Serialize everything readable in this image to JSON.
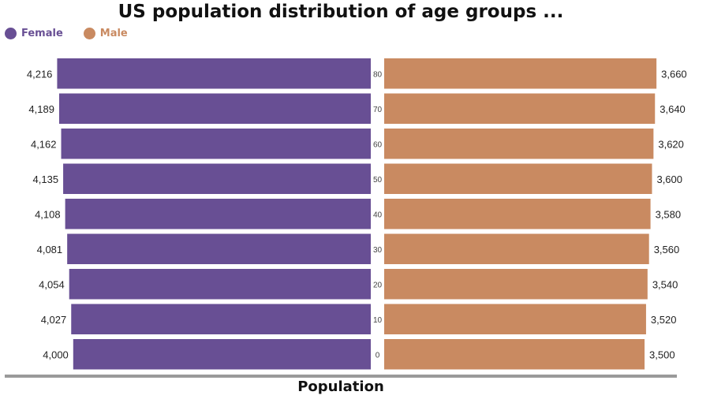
{
  "chart_data": {
    "type": "bar",
    "orientation": "horizontal-pyramid",
    "title": "US population distribution of age groups ...",
    "xlabel": "Population",
    "categories": [
      "80",
      "70",
      "60",
      "50",
      "40",
      "30",
      "20",
      "10",
      "0"
    ],
    "series": [
      {
        "name": "Female",
        "color": "#684f94",
        "side": "left",
        "values": [
          4216,
          4189,
          4162,
          4135,
          4108,
          4081,
          4054,
          4027,
          4000
        ],
        "labels": [
          "4,216",
          "4,189",
          "4,162",
          "4,135",
          "4,108",
          "4,081",
          "4,054",
          "4,027",
          "4,000"
        ]
      },
      {
        "name": "Male",
        "color": "#c98a61",
        "side": "right",
        "values": [
          3660,
          3640,
          3620,
          3600,
          3580,
          3560,
          3540,
          3520,
          3500
        ],
        "labels": [
          "3,660",
          "3,640",
          "3,620",
          "3,600",
          "3,580",
          "3,560",
          "3,540",
          "3,520",
          "3,500"
        ]
      }
    ],
    "legend_position": "top-left",
    "grid": false
  }
}
